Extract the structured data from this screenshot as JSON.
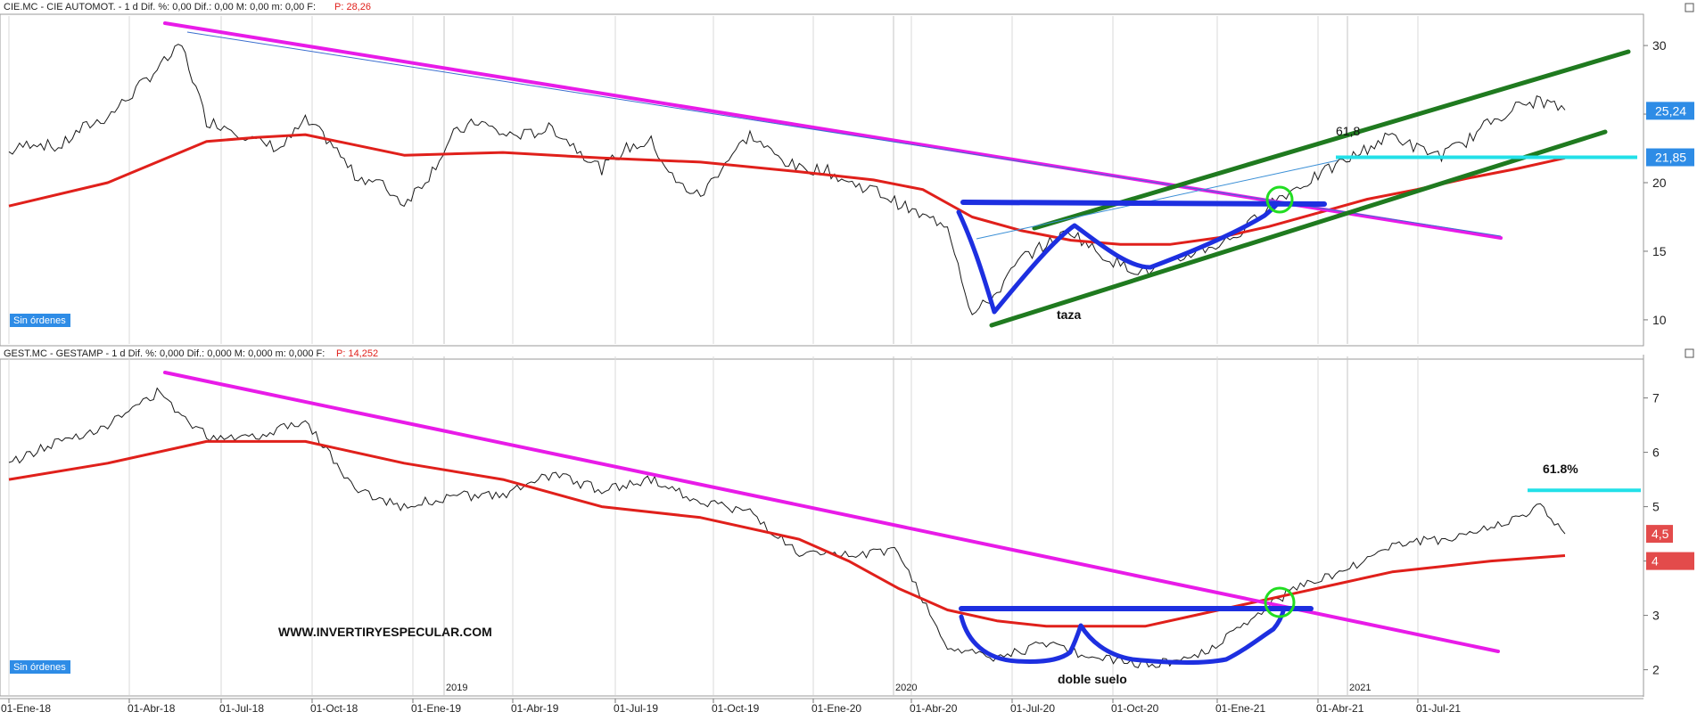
{
  "colors": {
    "price": "#1a1a1a",
    "ma": "#e0201b",
    "downtrend": "#e81be8",
    "pattern": "#1d2fe0",
    "channel": "#1f7a1f",
    "fib": "#22e0e8",
    "circle": "#22dd22",
    "grid": "#d9d9d9",
    "badge_blue": "#2e8ce6",
    "badge_red": "#e34b4b"
  },
  "panels": {
    "top": {
      "header": "CIE.MC - CIE AUTOMOT. -  1 d  Dif. %: 0,00  Dif.: 0,00  M: 0,00  m: 0,00  F:",
      "price_label": "P: 28,26",
      "orders": "Sin órdenes",
      "annotations": {
        "cup": "taza",
        "fib": "61,8"
      },
      "price_badges": [
        "25,24",
        "21,85"
      ]
    },
    "bottom": {
      "header": "GEST.MC - GESTAMP -  1 d  Dif. %: 0,000  Dif.: 0,000  M: 0,000  m: 0,000  F:",
      "price_label": "P: 14,252",
      "orders": "Sin órdenes",
      "annotations": {
        "pattern": "doble suelo",
        "fib": "61.8%",
        "website": "WWW.INVERTIRYESPECULAR.COM"
      },
      "price_badges": [
        "4,5",
        "4"
      ]
    }
  },
  "chart_data": [
    {
      "type": "line",
      "instrument": "CIE.MC - CIE AUTOMOT.",
      "ylim": [
        8.5,
        31.5
      ],
      "yticks": [
        10,
        15,
        20,
        25,
        30
      ],
      "x_ticks": [
        "01-Ene-18",
        "01-Abr-18",
        "01-Jul-18",
        "01-Oct-18",
        "01-Ene-19",
        "01-Abr-19",
        "01-Jul-19",
        "01-Oct-19",
        "01-Ene-20",
        "01-Abr-20",
        "01-Jul-20",
        "01-Oct-20",
        "01-Ene-21",
        "01-Abr-21",
        "01-Jul-21"
      ],
      "year_markers": [
        "2019",
        "2020",
        "2021"
      ],
      "price": [
        [
          0,
          22.2
        ],
        [
          1,
          23.0
        ],
        [
          2,
          22.5
        ],
        [
          3,
          24.0
        ],
        [
          4,
          24.8
        ],
        [
          5,
          26.5
        ],
        [
          6,
          28.3
        ],
        [
          7,
          30.0
        ],
        [
          8,
          24.5
        ],
        [
          9,
          24.0
        ],
        [
          10,
          23.0
        ],
        [
          11,
          22.5
        ],
        [
          12,
          24.5
        ],
        [
          13,
          23.0
        ],
        [
          14,
          20.5
        ],
        [
          15,
          20.0
        ],
        [
          16,
          18.5
        ],
        [
          17,
          20.5
        ],
        [
          18,
          23.5
        ],
        [
          19,
          24.5
        ],
        [
          20,
          23.5
        ],
        [
          21,
          23.5
        ],
        [
          22,
          24.0
        ],
        [
          23,
          22.5
        ],
        [
          24,
          21.0
        ],
        [
          25,
          22.5
        ],
        [
          26,
          23.0
        ],
        [
          27,
          20.0
        ],
        [
          28,
          19.0
        ],
        [
          29,
          21.5
        ],
        [
          30,
          23.5
        ],
        [
          31,
          22.0
        ],
        [
          32,
          21.0
        ],
        [
          33,
          21.0
        ],
        [
          34,
          20.0
        ],
        [
          35,
          19.5
        ],
        [
          36,
          18.5
        ],
        [
          37,
          17.5
        ],
        [
          38,
          17.0
        ],
        [
          39,
          10.3
        ],
        [
          40,
          12.0
        ],
        [
          41,
          14.5
        ],
        [
          42,
          15.5
        ],
        [
          43,
          16.5
        ],
        [
          44,
          15.0
        ],
        [
          45,
          14.0
        ],
        [
          46,
          13.5
        ],
        [
          47,
          14.0
        ],
        [
          48,
          15.0
        ],
        [
          49,
          15.5
        ],
        [
          50,
          16.5
        ],
        [
          51,
          18.5
        ],
        [
          52,
          19.5
        ],
        [
          53,
          20.5
        ],
        [
          54,
          21.5
        ],
        [
          55,
          22.5
        ],
        [
          56,
          23.5
        ],
        [
          57,
          22.5
        ],
        [
          58,
          22.0
        ],
        [
          59,
          23.0
        ],
        [
          60,
          24.5
        ],
        [
          61,
          25.5
        ],
        [
          62,
          26.0
        ],
        [
          63,
          25.3
        ]
      ],
      "ma": [
        [
          0,
          18.3
        ],
        [
          4,
          20.0
        ],
        [
          8,
          23.0
        ],
        [
          10,
          23.3
        ],
        [
          12,
          23.5
        ],
        [
          16,
          22.0
        ],
        [
          20,
          22.2
        ],
        [
          24,
          21.8
        ],
        [
          28,
          21.5
        ],
        [
          32,
          20.8
        ],
        [
          35,
          20.2
        ],
        [
          37,
          19.5
        ],
        [
          39,
          17.5
        ],
        [
          41,
          16.5
        ],
        [
          43,
          15.8
        ],
        [
          45,
          15.5
        ],
        [
          47,
          15.5
        ],
        [
          49,
          16.0
        ],
        [
          51,
          16.8
        ],
        [
          53,
          17.8
        ],
        [
          55,
          18.8
        ],
        [
          57,
          19.5
        ],
        [
          59,
          20.3
        ],
        [
          61,
          21.0
        ],
        [
          63,
          21.8
        ]
      ],
      "fib_level": 21.85,
      "last_price": 25.24
    },
    {
      "type": "line",
      "instrument": "GEST.MC - GESTAMP",
      "ylim": [
        1.6,
        7.6
      ],
      "yticks": [
        2,
        3,
        4,
        5,
        6,
        7
      ],
      "x_ticks": [
        "01-Ene-18",
        "01-Abr-18",
        "01-Jul-18",
        "01-Oct-18",
        "01-Ene-19",
        "01-Abr-19",
        "01-Jul-19",
        "01-Oct-19",
        "01-Ene-20",
        "01-Abr-20",
        "01-Jul-20",
        "01-Oct-20",
        "01-Ene-21",
        "01-Abr-21",
        "01-Jul-21"
      ],
      "year_markers": [
        "2019",
        "2020",
        "2021"
      ],
      "price": [
        [
          0,
          5.8
        ],
        [
          2,
          6.2
        ],
        [
          4,
          6.5
        ],
        [
          6,
          7.1
        ],
        [
          8,
          6.3
        ],
        [
          10,
          6.3
        ],
        [
          12,
          6.6
        ],
        [
          14,
          5.3
        ],
        [
          16,
          5.0
        ],
        [
          18,
          5.2
        ],
        [
          20,
          5.2
        ],
        [
          22,
          5.6
        ],
        [
          24,
          5.3
        ],
        [
          26,
          5.5
        ],
        [
          28,
          5.1
        ],
        [
          30,
          4.9
        ],
        [
          32,
          4.1
        ],
        [
          34,
          4.1
        ],
        [
          36,
          4.2
        ],
        [
          37,
          3.3
        ],
        [
          38,
          2.4
        ],
        [
          40,
          2.2
        ],
        [
          42,
          2.5
        ],
        [
          44,
          2.2
        ],
        [
          46,
          2.1
        ],
        [
          48,
          2.2
        ],
        [
          50,
          2.8
        ],
        [
          52,
          3.5
        ],
        [
          54,
          3.8
        ],
        [
          56,
          4.3
        ],
        [
          58,
          4.4
        ],
        [
          60,
          4.6
        ],
        [
          62,
          5.0
        ],
        [
          63,
          4.5
        ]
      ],
      "ma": [
        [
          0,
          5.5
        ],
        [
          4,
          5.8
        ],
        [
          8,
          6.2
        ],
        [
          12,
          6.2
        ],
        [
          16,
          5.8
        ],
        [
          20,
          5.5
        ],
        [
          24,
          5.0
        ],
        [
          28,
          4.8
        ],
        [
          32,
          4.4
        ],
        [
          34,
          4.0
        ],
        [
          36,
          3.5
        ],
        [
          38,
          3.1
        ],
        [
          40,
          2.9
        ],
        [
          42,
          2.8
        ],
        [
          44,
          2.8
        ],
        [
          46,
          2.8
        ],
        [
          48,
          3.0
        ],
        [
          50,
          3.2
        ],
        [
          52,
          3.4
        ],
        [
          54,
          3.6
        ],
        [
          56,
          3.8
        ],
        [
          58,
          3.9
        ],
        [
          60,
          4.0
        ],
        [
          63,
          4.1
        ]
      ],
      "fib_level": 5.3,
      "last_price": 4.5
    }
  ]
}
